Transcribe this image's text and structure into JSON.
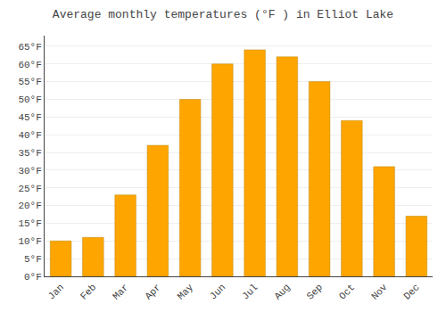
{
  "chart_data": {
    "type": "bar",
    "title": "Average monthly temperatures (°F ) in Elliot Lake",
    "categories": [
      "Jan",
      "Feb",
      "Mar",
      "Apr",
      "May",
      "Jun",
      "Jul",
      "Aug",
      "Sep",
      "Oct",
      "Nov",
      "Dec"
    ],
    "values": [
      10,
      11,
      23,
      37,
      50,
      60,
      64,
      62,
      55,
      44,
      31,
      17
    ],
    "color": "#FFA500",
    "ylim": [
      0,
      68
    ],
    "yticks": [
      {
        "value": 0,
        "label": "0°F"
      },
      {
        "value": 5,
        "label": "5°F"
      },
      {
        "value": 10,
        "label": "10°F"
      },
      {
        "value": 15,
        "label": "15°F"
      },
      {
        "value": 20,
        "label": "20°F"
      },
      {
        "value": 25,
        "label": "25°F"
      },
      {
        "value": 30,
        "label": "30°F"
      },
      {
        "value": 35,
        "label": "35°F"
      },
      {
        "value": 40,
        "label": "40°F"
      },
      {
        "value": 45,
        "label": "45°F"
      },
      {
        "value": 50,
        "label": "50°F"
      },
      {
        "value": 55,
        "label": "55°F"
      },
      {
        "value": 60,
        "label": "60°F"
      },
      {
        "value": 65,
        "label": "65°F"
      }
    ],
    "grid": true
  }
}
